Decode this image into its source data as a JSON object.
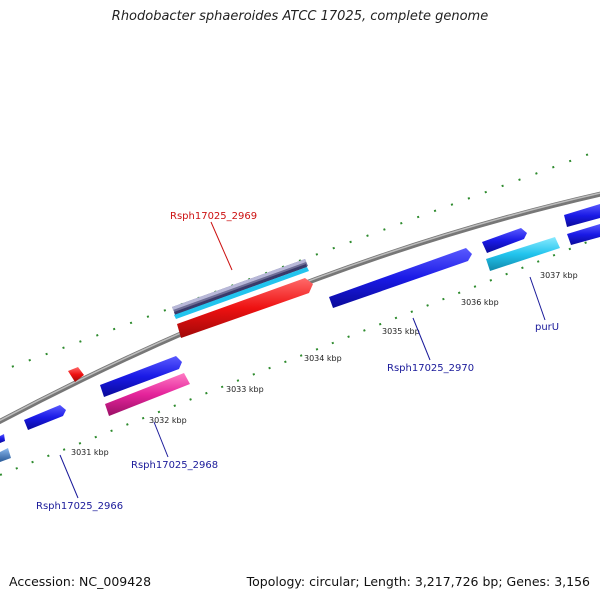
{
  "title": "Rhodobacter sphaeroides ATCC 17025, complete genome",
  "footer": {
    "accession_label": "Accession:",
    "accession": "NC_009428",
    "stats": "Topology: circular; Length: 3,217,726 bp; Genes: 3,156"
  },
  "scale": {
    "unit": "kbp",
    "ticks": [
      {
        "kbp": 3031,
        "label": "3031 kbp"
      },
      {
        "kbp": 3032,
        "label": "3032 kbp"
      },
      {
        "kbp": 3033,
        "label": "3033 kbp"
      },
      {
        "kbp": 3034,
        "label": "3034 kbp"
      },
      {
        "kbp": 3035,
        "label": "3035 kbp"
      },
      {
        "kbp": 3036,
        "label": "3036 kbp"
      },
      {
        "kbp": 3037,
        "label": "3037 kbp"
      }
    ]
  },
  "colors": {
    "backbone": "#8a8a8a",
    "gene_blue": "#1a1ae6",
    "red": "#ee1111",
    "magenta": "#e4239a",
    "cyan": "#22c4ee",
    "steel": "#4a88c8",
    "green_ticks": "#2e8b2e",
    "label_blue": "#1a1a9a",
    "label_red": "#cc1111"
  },
  "features": [
    {
      "id": "f1",
      "color": "#1a1ae6",
      "strand": "forward",
      "arrow": true
    },
    {
      "id": "f2",
      "color": "#1a1ae6",
      "strand": "forward",
      "arrow": true
    },
    {
      "id": "f3",
      "color": "#1a1ae6",
      "strand": "forward",
      "arrow": true
    },
    {
      "id": "f4",
      "color": "#1a1ae6",
      "strand": "forward",
      "arrow": true
    },
    {
      "id": "f5",
      "color": "#1a1ae6",
      "strand": "forward",
      "arrow": true
    },
    {
      "id": "f6",
      "color": "#1a1ae6",
      "strand": "forward",
      "arrow": true
    },
    {
      "id": "f7",
      "color": "#ee1111",
      "strand": "forward",
      "arrow": true
    },
    {
      "id": "f8",
      "color": "#ee1111",
      "strand": "forward",
      "arrow": true
    },
    {
      "id": "f9",
      "color": "#e4239a",
      "strand": "forward",
      "arrow": true
    },
    {
      "id": "f10",
      "color": "#22c4ee",
      "strand": "forward",
      "arrow": true
    },
    {
      "id": "f11",
      "color": "#4a88c8",
      "strand": "forward",
      "arrow": false
    },
    {
      "id": "f12",
      "color": "#8a8aaa",
      "strand": "forward",
      "arrow": false
    }
  ],
  "gene_labels": [
    {
      "name": "Rsph17025_2969",
      "color": "#cc1111"
    },
    {
      "name": "Rsph17025_2970",
      "color": "#1a1a9a"
    },
    {
      "name": "purU",
      "color": "#1a1a9a"
    },
    {
      "name": "Rsph17025_2968",
      "color": "#1a1a9a"
    },
    {
      "name": "Rsph17025_2966",
      "color": "#1a1a9a"
    }
  ]
}
